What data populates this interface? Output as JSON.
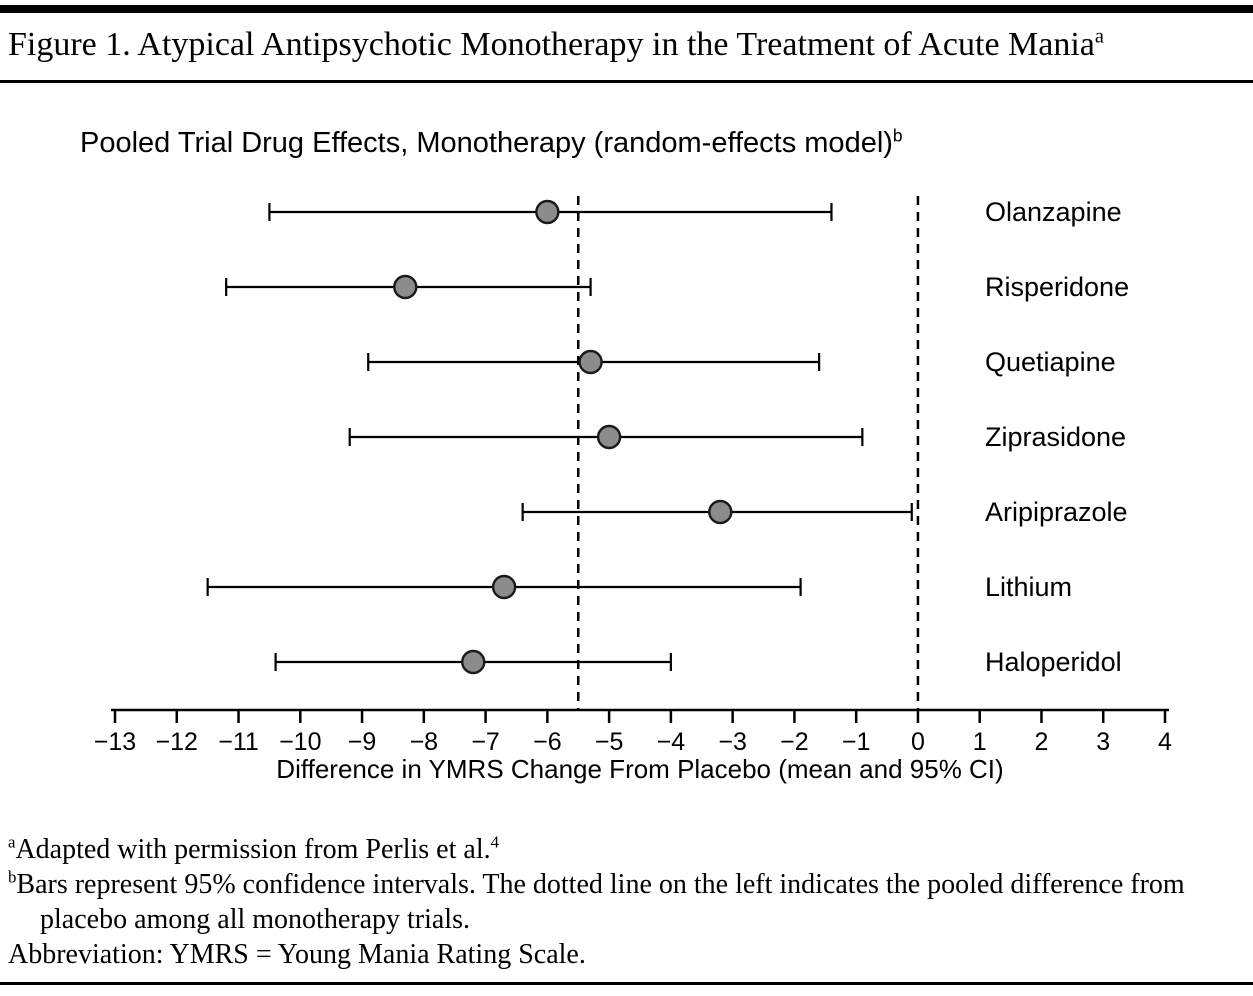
{
  "figure": {
    "title": "Figure 1. Atypical Antipsychotic Monotherapy in the Treatment of Acute Mania",
    "title_superscript": "a",
    "footnotes": [
      {
        "sup": "a",
        "text": "Adapted with permission from Perlis et al.",
        "tail_sup": "4"
      },
      {
        "sup": "b",
        "text": "Bars represent 95% confidence intervals. The dotted line on the left indicates the pooled difference from placebo among all monotherapy trials."
      },
      {
        "sup": "",
        "text": "Abbreviation: YMRS = Young Mania Rating Scale."
      }
    ]
  },
  "chart_data": {
    "type": "scatter",
    "subtype": "forest-plot",
    "title": "Pooled Trial Drug Effects, Monotherapy (random-effects model)",
    "title_superscript": "b",
    "xlabel": "Difference in YMRS Change From Placebo (mean and 95% CI)",
    "xlim": [
      -13,
      4
    ],
    "xticks": [
      -13,
      -12,
      -11,
      -10,
      -9,
      -8,
      -7,
      -6,
      -5,
      -4,
      -3,
      -2,
      -1,
      0,
      1,
      2,
      3,
      4
    ],
    "grid": false,
    "labels_position": "right",
    "legend": "none",
    "reference_lines": [
      {
        "name": "pooled-difference",
        "x": -5.5,
        "style": "dashed"
      },
      {
        "name": "zero",
        "x": 0,
        "style": "dashed"
      }
    ],
    "series": [
      {
        "label": "Olanzapine",
        "mean": -6.0,
        "ci_low": -10.5,
        "ci_high": -1.4
      },
      {
        "label": "Risperidone",
        "mean": -8.3,
        "ci_low": -11.2,
        "ci_high": -5.3
      },
      {
        "label": "Quetiapine",
        "mean": -5.3,
        "ci_low": -8.9,
        "ci_high": -1.6
      },
      {
        "label": "Ziprasidone",
        "mean": -5.0,
        "ci_low": -9.2,
        "ci_high": -0.9
      },
      {
        "label": "Aripiprazole",
        "mean": -3.2,
        "ci_low": -6.4,
        "ci_high": -0.1
      },
      {
        "label": "Lithium",
        "mean": -6.7,
        "ci_low": -11.5,
        "ci_high": -1.9
      },
      {
        "label": "Haloperidol",
        "mean": -7.2,
        "ci_low": -10.4,
        "ci_high": -4.0
      }
    ],
    "marker": {
      "shape": "circle",
      "fill": "#8c8c8c",
      "stroke": "#1a1a1a"
    },
    "line_color": "#000000"
  }
}
